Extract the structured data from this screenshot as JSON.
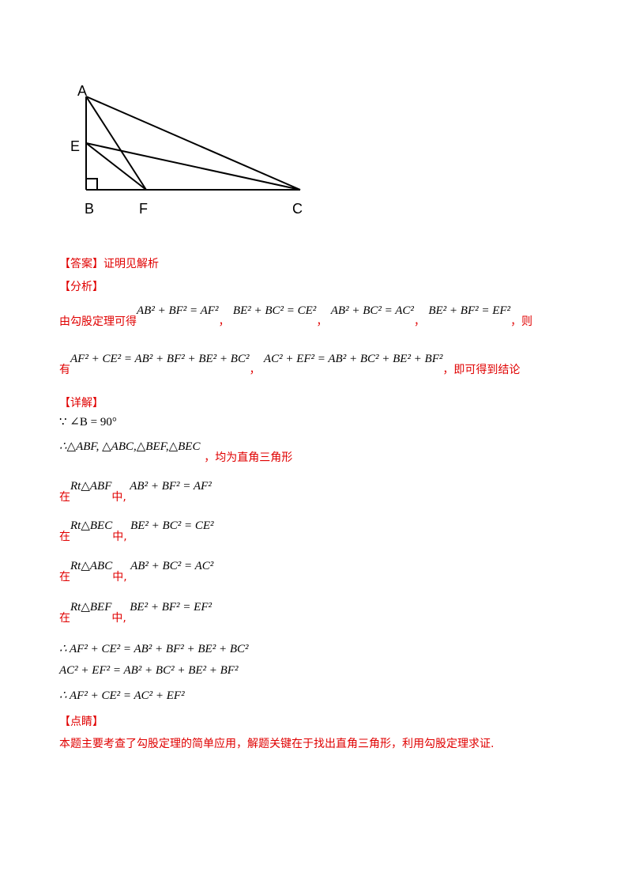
{
  "figure": {
    "labels": {
      "A": "A",
      "E": "E",
      "B": "B",
      "F": "F",
      "C": "C"
    }
  },
  "answer": {
    "heading": "【答案】",
    "text": "证明见解析"
  },
  "analysis": {
    "heading": "【分析】",
    "line1": {
      "prefix": "由勾股定理可得",
      "eq1": "AB² + BF² = AF²",
      "sep1": "，",
      "eq2": "BE² + BC² = CE²",
      "sep2": "，",
      "eq3": "AB² + BC² = AC²",
      "sep3": "，",
      "eq4": "BE² + BF² = EF²",
      "suffix": "，则"
    },
    "line2": {
      "prefix": "有",
      "eq1": "AF² + CE² = AB² + BF² + BE² + BC²",
      "sep": "，",
      "eq2": "AC² + EF² = AB² + BC² + BE² + BF²",
      "suffix": "，即可得到结论"
    }
  },
  "detail": {
    "heading": "【详解】",
    "given": "∵ ∠B = 90°",
    "triangles": "∴△ABF, △ABC,△BEF,△BEC",
    "triangles_suffix": "，均为直角三角形",
    "steps": [
      {
        "pre": "在",
        "tri": "Rt△ABF",
        "mid": "中,",
        "eq": "AB² + BF² = AF²"
      },
      {
        "pre": "在",
        "tri": "Rt△BEC",
        "mid": "中,",
        "eq": "BE² + BC² = CE²"
      },
      {
        "pre": "在",
        "tri": "Rt△ABC",
        "mid": "中,",
        "eq": "AB² + BC² = AC²"
      },
      {
        "pre": "在",
        "tri": "Rt△BEF",
        "mid": "中,",
        "eq": "BE² + BF² = EF²"
      }
    ],
    "conclusion1": "∴ AF² + CE² = AB² + BF² + BE² + BC²",
    "conclusion2": "AC² + EF² = AB² + BC² + BE² + BF²",
    "conclusion3": "∴ AF² + CE² = AC² + EF²"
  },
  "comment": {
    "heading": "【点睛】",
    "text": "本题主要考查了勾股定理的简单应用，解题关键在于找出直角三角形，利用勾股定理求证."
  }
}
